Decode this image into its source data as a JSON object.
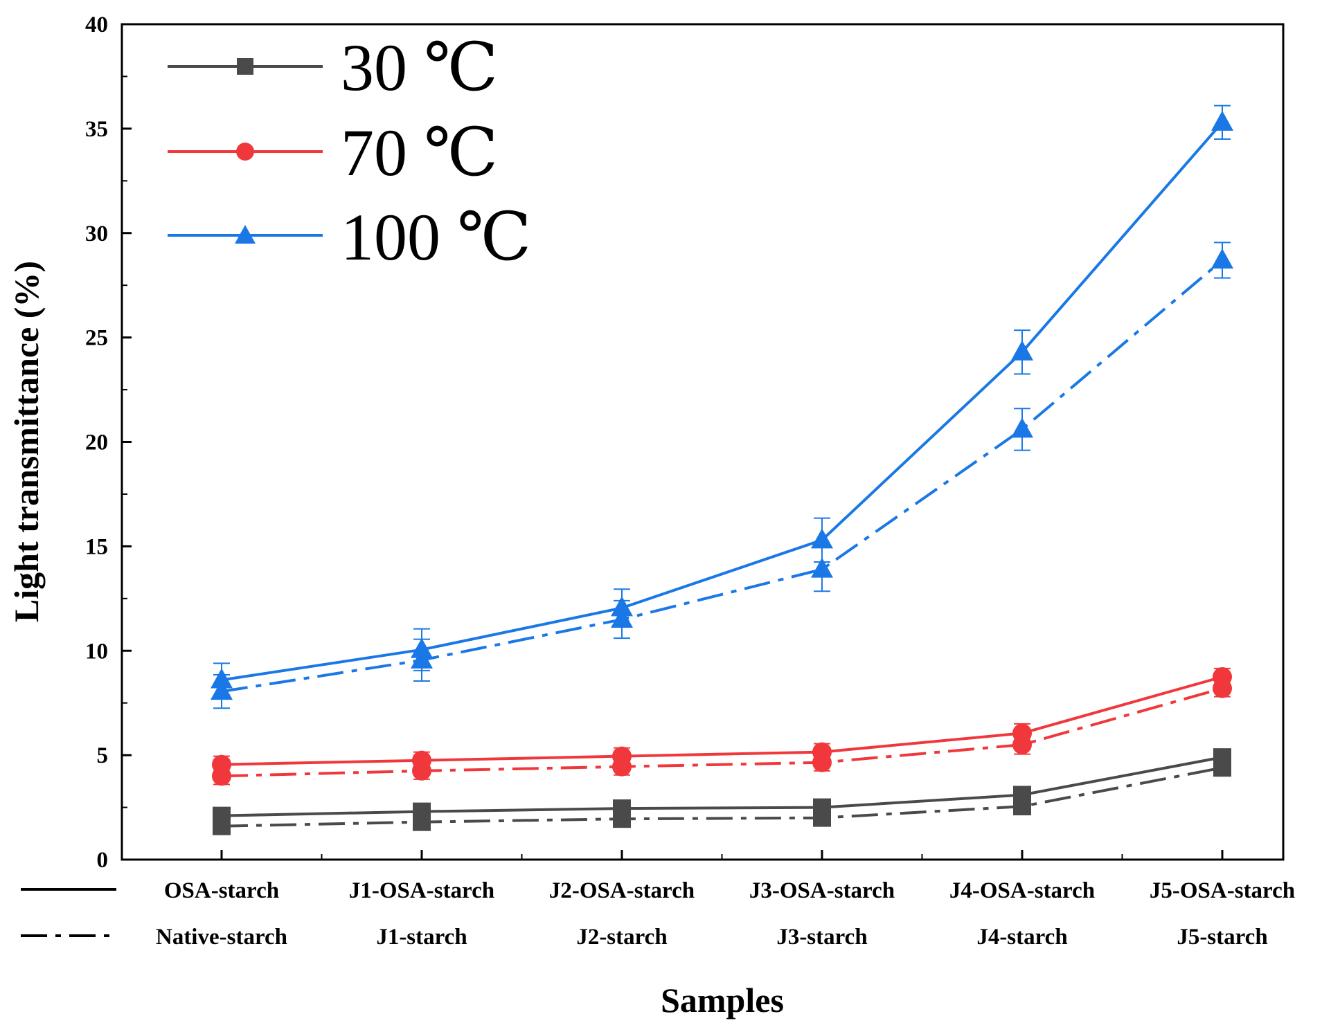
{
  "chart_data": {
    "type": "line",
    "title": "",
    "xlabel": "Samples",
    "ylabel": "Light transmittance (%)",
    "ylim": [
      0,
      40
    ],
    "yticks": [
      0,
      5,
      10,
      15,
      20,
      25,
      30,
      35,
      40
    ],
    "categories_solid": [
      "OSA-starch",
      "J1-OSA-starch",
      "J2-OSA-starch",
      "J3-OSA-starch",
      "J4-OSA-starch",
      "J5-OSA-starch"
    ],
    "categories_dashed": [
      "Native-starch",
      "J1-starch",
      "J2-starch",
      "J3-starch",
      "J4-starch",
      "J5-starch"
    ],
    "legend": [
      {
        "label": "30 ℃",
        "color": "#4a4a4a",
        "marker": "square"
      },
      {
        "label": "70 ℃",
        "color": "#f0383c",
        "marker": "circle"
      },
      {
        "label": "100 ℃",
        "color": "#1a78e6",
        "marker": "triangle"
      }
    ],
    "series": [
      {
        "name": "30 ℃ OSA-starch",
        "group": "30 ℃",
        "style": "solid",
        "color": "#4a4a4a",
        "marker": "square",
        "values": [
          2.1,
          2.3,
          2.45,
          2.5,
          3.1,
          4.9
        ],
        "errors": [
          0.3,
          0.3,
          0.3,
          0.3,
          0.3,
          0.3
        ]
      },
      {
        "name": "30 ℃ Native-starch",
        "group": "30 ℃",
        "style": "dashdot",
        "color": "#4a4a4a",
        "marker": "square",
        "values": [
          1.6,
          1.8,
          1.95,
          2.0,
          2.55,
          4.4
        ],
        "errors": [
          0.3,
          0.3,
          0.3,
          0.3,
          0.3,
          0.3
        ]
      },
      {
        "name": "70 ℃ OSA-starch",
        "group": "70 ℃",
        "style": "solid",
        "color": "#f0383c",
        "marker": "circle",
        "values": [
          4.55,
          4.75,
          4.95,
          5.15,
          6.05,
          8.75
        ],
        "errors": [
          0.4,
          0.4,
          0.4,
          0.4,
          0.45,
          0.4
        ]
      },
      {
        "name": "70 ℃ Native-starch",
        "group": "70 ℃",
        "style": "dashdot",
        "color": "#f0383c",
        "marker": "circle",
        "values": [
          4.0,
          4.25,
          4.45,
          4.65,
          5.5,
          8.2
        ],
        "errors": [
          0.4,
          0.4,
          0.4,
          0.4,
          0.45,
          0.4
        ]
      },
      {
        "name": "100 ℃ OSA-starch",
        "group": "100 ℃",
        "style": "solid",
        "color": "#1a78e6",
        "marker": "triangle",
        "values": [
          8.6,
          10.05,
          12.05,
          15.3,
          24.3,
          35.3
        ],
        "errors": [
          0.8,
          1.0,
          0.9,
          1.05,
          1.05,
          0.8
        ]
      },
      {
        "name": "100 ℃ Native-starch",
        "group": "100 ℃",
        "style": "dashdot",
        "color": "#1a78e6",
        "marker": "triangle",
        "values": [
          8.05,
          9.55,
          11.5,
          13.9,
          20.6,
          28.7
        ],
        "errors": [
          0.8,
          1.0,
          0.9,
          1.05,
          1.0,
          0.85
        ]
      }
    ]
  }
}
